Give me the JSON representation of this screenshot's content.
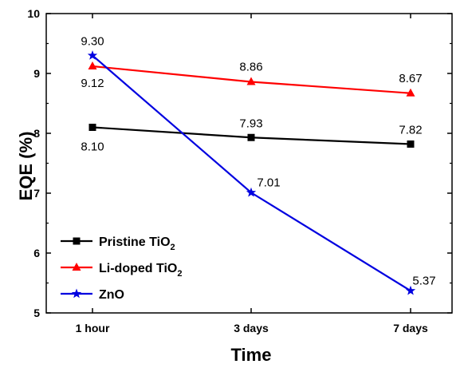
{
  "chart_data": {
    "type": "line",
    "xlabel": "Time",
    "ylabel": "EQE (%)",
    "categories": [
      "1 hour",
      "3 days",
      "7 days"
    ],
    "ylim": [
      5,
      10
    ],
    "yticks": [
      "5",
      "6",
      "7",
      "8",
      "9",
      "10"
    ],
    "grid": false,
    "legend_position": "bottom-left",
    "series": [
      {
        "name": "Pristine TiO2",
        "legend_base": "Pristine TiO",
        "legend_sub": "2",
        "color": "#000000",
        "marker": "square",
        "values": [
          8.1,
          7.93,
          7.82
        ],
        "labels": [
          "8.10",
          "7.93",
          "7.82"
        ]
      },
      {
        "name": "Li-doped TiO2",
        "legend_base": "Li-doped TiO",
        "legend_sub": "2",
        "color": "#ff0000",
        "marker": "triangle",
        "values": [
          9.12,
          8.86,
          8.67
        ],
        "labels": [
          "9.12",
          "8.86",
          "8.67"
        ]
      },
      {
        "name": "ZnO",
        "legend_base": "ZnO",
        "legend_sub": "",
        "color": "#0000e0",
        "marker": "star",
        "values": [
          9.3,
          7.01,
          5.37
        ],
        "labels": [
          "9.30",
          "7.01",
          "5.37"
        ]
      }
    ]
  }
}
